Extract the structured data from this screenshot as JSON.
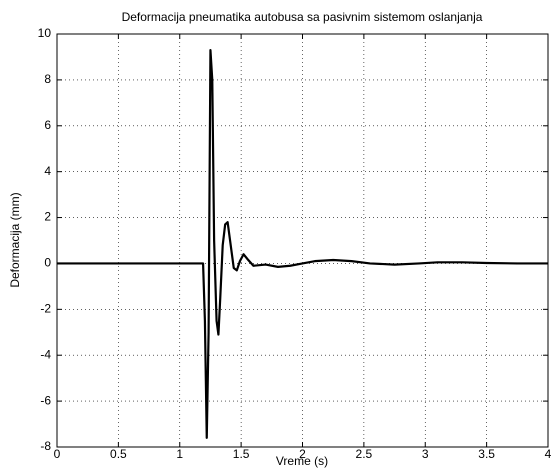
{
  "chart_data": {
    "type": "line",
    "title": "Deformacija pneumatika autobusa sa pasivnim sistemom oslanjanja",
    "x_label": "Vreme (s)",
    "y_label": "Deformacija (mm)",
    "x": [
      0,
      0.5,
      1.0,
      1.19,
      1.205,
      1.22,
      1.235,
      1.25,
      1.265,
      1.28,
      1.3,
      1.315,
      1.33,
      1.35,
      1.37,
      1.39,
      1.41,
      1.44,
      1.465,
      1.49,
      1.52,
      1.55,
      1.6,
      1.7,
      1.8,
      1.9,
      2.0,
      2.1,
      2.25,
      2.4,
      2.55,
      2.75,
      2.95,
      3.1,
      3.3,
      3.5,
      3.75,
      4.0
    ],
    "series": [
      {
        "name": "Deformacija",
        "color": "#000000",
        "values": [
          0,
          0,
          0,
          0,
          -2.5,
          -7.6,
          -3.0,
          9.3,
          8.0,
          1.0,
          -2.5,
          -3.1,
          -1.5,
          0.8,
          1.7,
          1.8,
          1.0,
          -0.2,
          -0.3,
          0.1,
          0.4,
          0.2,
          -0.1,
          -0.05,
          -0.15,
          -0.1,
          0.0,
          0.1,
          0.15,
          0.1,
          0.0,
          -0.05,
          0.0,
          0.05,
          0.05,
          0.02,
          0.0,
          0.0
        ]
      }
    ],
    "xlim": [
      0,
      4
    ],
    "xticks": [
      0,
      0.5,
      1,
      1.5,
      2,
      2.5,
      3,
      3.5,
      4
    ],
    "ylim": [
      -8,
      10
    ],
    "yticks": [
      -8,
      -6,
      -4,
      -2,
      0,
      2,
      4,
      6,
      8,
      10
    ],
    "grid": true
  }
}
